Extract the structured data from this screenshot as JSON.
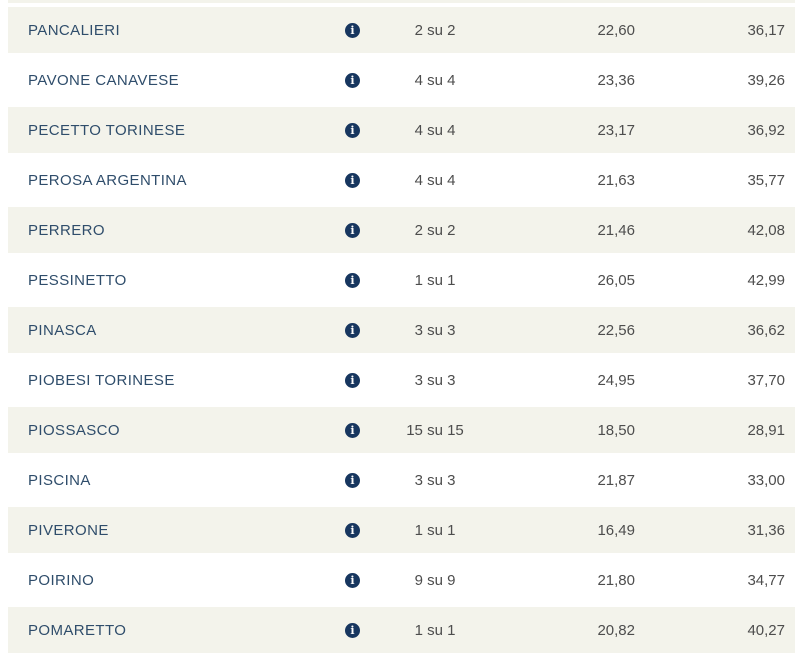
{
  "colors": {
    "row_alt_bg": "#f3f3eb",
    "name_text": "#2f4d6b",
    "value_text": "#4d4d4d",
    "info_icon_bg": "#17365f"
  },
  "icons": {
    "info": "info-icon",
    "info_glyph": "i"
  },
  "table": {
    "rows": [
      {
        "name": "PANCALIERI",
        "ratio": "2 su 2",
        "value1": "22,60",
        "value2": "36,17"
      },
      {
        "name": "PAVONE CANAVESE",
        "ratio": "4 su 4",
        "value1": "23,36",
        "value2": "39,26"
      },
      {
        "name": "PECETTO TORINESE",
        "ratio": "4 su 4",
        "value1": "23,17",
        "value2": "36,92"
      },
      {
        "name": "PEROSA ARGENTINA",
        "ratio": "4 su 4",
        "value1": "21,63",
        "value2": "35,77"
      },
      {
        "name": "PERRERO",
        "ratio": "2 su 2",
        "value1": "21,46",
        "value2": "42,08"
      },
      {
        "name": "PESSINETTO",
        "ratio": "1 su 1",
        "value1": "26,05",
        "value2": "42,99"
      },
      {
        "name": "PINASCA",
        "ratio": "3 su 3",
        "value1": "22,56",
        "value2": "36,62"
      },
      {
        "name": "PIOBESI TORINESE",
        "ratio": "3 su 3",
        "value1": "24,95",
        "value2": "37,70"
      },
      {
        "name": "PIOSSASCO",
        "ratio": "15 su 15",
        "value1": "18,50",
        "value2": "28,91"
      },
      {
        "name": "PISCINA",
        "ratio": "3 su 3",
        "value1": "21,87",
        "value2": "33,00"
      },
      {
        "name": "PIVERONE",
        "ratio": "1 su 1",
        "value1": "16,49",
        "value2": "31,36"
      },
      {
        "name": "POIRINO",
        "ratio": "9 su 9",
        "value1": "21,80",
        "value2": "34,77"
      },
      {
        "name": "POMARETTO",
        "ratio": "1 su 1",
        "value1": "20,82",
        "value2": "40,27"
      }
    ]
  }
}
